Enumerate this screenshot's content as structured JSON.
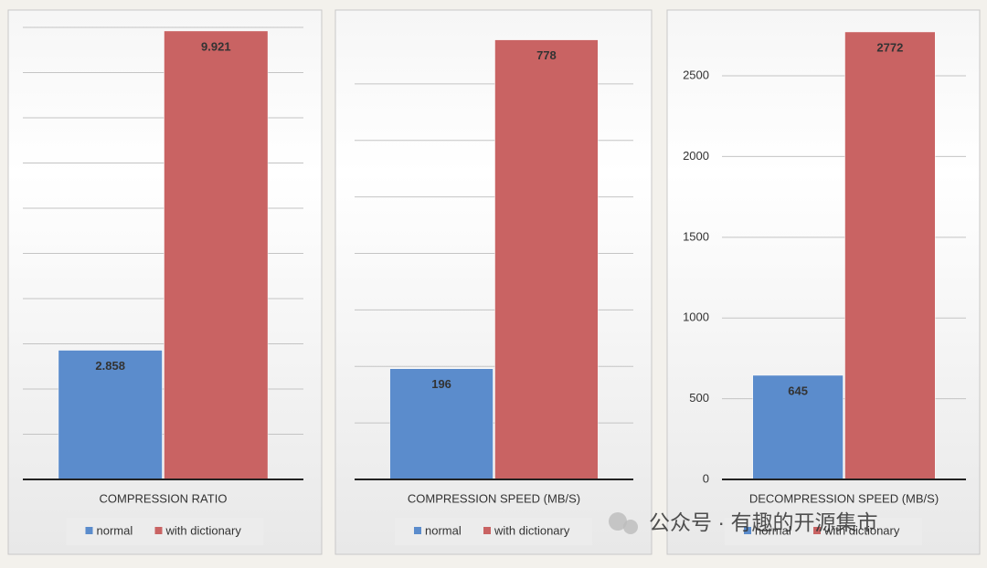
{
  "chart_data": [
    {
      "type": "bar",
      "xlabel": "COMPRESSION RATIO",
      "ylim": [
        0,
        10
      ],
      "yticks": [
        1,
        2,
        3,
        4,
        5,
        6,
        7,
        8,
        9,
        10
      ],
      "show_tick_labels": false,
      "grid": true,
      "legend": "bottom",
      "series": [
        {
          "name": "normal",
          "color": "#5b8ccc",
          "values": [
            2.858
          ]
        },
        {
          "name": "with dictionary",
          "color": "#c96363",
          "values": [
            9.921
          ]
        }
      ]
    },
    {
      "type": "bar",
      "xlabel": "COMPRESSION SPEED (MB/S)",
      "ylim": [
        0,
        800
      ],
      "yticks": [
        100,
        200,
        300,
        400,
        500,
        600,
        700
      ],
      "show_tick_labels": false,
      "grid": true,
      "legend": "bottom",
      "series": [
        {
          "name": "normal",
          "color": "#5b8ccc",
          "values": [
            196
          ]
        },
        {
          "name": "with dictionary",
          "color": "#c96363",
          "values": [
            778
          ]
        }
      ]
    },
    {
      "type": "bar",
      "xlabel": "DECOMPRESSION SPEED (MB/S)",
      "ylim": [
        0,
        2800
      ],
      "yticks": [
        0,
        500,
        1000,
        1500,
        2000,
        2500
      ],
      "show_tick_labels": true,
      "grid": true,
      "legend": "bottom",
      "series": [
        {
          "name": "normal",
          "color": "#5b8ccc",
          "values": [
            645
          ]
        },
        {
          "name": "with dictionary",
          "color": "#c96363",
          "values": [
            2772
          ]
        }
      ]
    }
  ],
  "watermark": "公众号 · 有趣的开源集市"
}
